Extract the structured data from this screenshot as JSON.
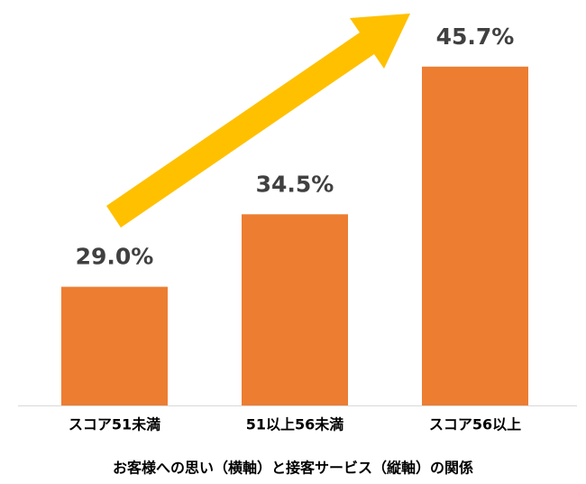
{
  "chart_data": {
    "type": "bar",
    "categories": [
      "スコア51未満",
      "51以上56未満",
      "スコア56以上"
    ],
    "values": [
      29.0,
      34.5,
      45.7
    ],
    "value_labels": [
      "29.0%",
      "34.5%",
      "45.7%"
    ],
    "color": "#ED7D31",
    "ylim": [
      20,
      50
    ],
    "x_label": "お客様への思い（横軸）と接客サービス（縦軸）の関係"
  }
}
